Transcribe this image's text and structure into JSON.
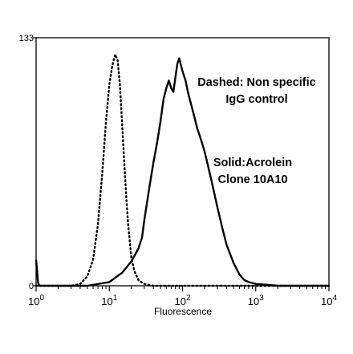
{
  "chart_data": {
    "type": "line",
    "title": "",
    "xlabel": "Fluorescence",
    "ylabel": "",
    "x_scale": "log",
    "xlim": [
      1,
      10000
    ],
    "ylim": [
      0,
      133
    ],
    "x_ticks": [
      {
        "value": 1,
        "base": "10",
        "exp": "0"
      },
      {
        "value": 10,
        "base": "10",
        "exp": "1"
      },
      {
        "value": 100,
        "base": "10",
        "exp": "2"
      },
      {
        "value": 1000,
        "base": "10",
        "exp": "3"
      },
      {
        "value": 10000,
        "base": "10",
        "exp": "4"
      }
    ],
    "y_ticks": [
      "0",
      "133"
    ],
    "grid": false,
    "annotations": [
      {
        "lines": [
          "Dashed: Non specific",
          "IgG control"
        ]
      },
      {
        "lines": [
          "Solid:Acrolein",
          "Clone 10A10"
        ]
      }
    ],
    "series": [
      {
        "style": "dashed",
        "x": [
          1,
          3,
          4,
          5,
          6,
          7,
          8,
          9,
          10,
          11,
          12,
          13,
          14,
          15,
          16,
          17,
          18,
          20,
          22,
          25,
          30,
          40,
          100,
          1000,
          10000
        ],
        "y": [
          0,
          0,
          1,
          5,
          14,
          33,
          60,
          88,
          108,
          118,
          124,
          121,
          107,
          86,
          66,
          48,
          34,
          15,
          8,
          3,
          1,
          0,
          0,
          0,
          0
        ]
      },
      {
        "style": "solid",
        "x": [
          1,
          1.03,
          1.06,
          1.1,
          2,
          5,
          10,
          15,
          20,
          25,
          28,
          30,
          35,
          40,
          45,
          50,
          55,
          60,
          65,
          70,
          75,
          80,
          85,
          90,
          100,
          110,
          120,
          140,
          160,
          180,
          200,
          250,
          300,
          350,
          400,
          500,
          600,
          700,
          800,
          1000,
          2000,
          5000,
          10000
        ],
        "y": [
          14,
          8,
          2,
          0,
          0,
          0,
          2,
          7,
          13,
          20,
          26,
          35,
          52,
          66,
          77,
          88,
          100,
          106,
          110,
          106,
          104,
          112,
          119,
          122,
          115,
          110,
          103,
          93,
          84,
          78,
          72,
          56,
          42,
          31,
          22,
          12,
          6,
          3,
          2,
          1,
          0,
          0,
          0
        ]
      }
    ]
  }
}
